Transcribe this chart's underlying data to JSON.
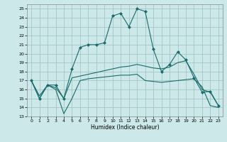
{
  "xlabel": "Humidex (Indice chaleur)",
  "background_color": "#cce8e8",
  "grid_color": "#9bbfbf",
  "line_color": "#1a6b6b",
  "xlim": [
    -0.5,
    23.5
  ],
  "ylim": [
    13,
    25.5
  ],
  "xticks": [
    0,
    1,
    2,
    3,
    4,
    5,
    6,
    7,
    8,
    9,
    10,
    11,
    12,
    13,
    14,
    15,
    16,
    17,
    18,
    19,
    20,
    21,
    22,
    23
  ],
  "yticks": [
    13,
    14,
    15,
    16,
    17,
    18,
    19,
    20,
    21,
    22,
    23,
    24,
    25
  ],
  "series1_x": [
    0,
    1,
    2,
    3,
    4,
    5,
    6,
    7,
    8,
    9,
    10,
    11,
    12,
    13,
    14,
    15,
    16,
    17,
    18,
    19,
    20,
    21,
    22,
    23
  ],
  "series1_y": [
    17.0,
    15.0,
    16.5,
    16.5,
    15.0,
    18.3,
    20.7,
    21.0,
    21.0,
    21.2,
    24.2,
    24.5,
    23.0,
    25.0,
    24.7,
    20.5,
    18.0,
    18.8,
    20.2,
    19.3,
    17.3,
    15.7,
    15.8,
    14.2
  ],
  "series2_x": [
    0,
    1,
    2,
    3,
    4,
    5,
    6,
    7,
    8,
    9,
    10,
    11,
    12,
    13,
    14,
    15,
    16,
    17,
    18,
    19,
    20,
    21,
    22,
    23
  ],
  "series2_y": [
    17.0,
    15.0,
    16.5,
    16.0,
    13.3,
    15.0,
    17.0,
    17.2,
    17.3,
    17.4,
    17.5,
    17.6,
    17.6,
    17.7,
    17.0,
    16.9,
    16.8,
    16.9,
    17.0,
    17.1,
    17.2,
    16.3,
    14.2,
    14.0
  ],
  "series3_x": [
    0,
    1,
    2,
    3,
    4,
    5,
    6,
    7,
    8,
    9,
    10,
    11,
    12,
    13,
    14,
    15,
    16,
    17,
    18,
    19,
    20,
    21,
    22,
    23
  ],
  "series3_y": [
    17.0,
    15.3,
    16.5,
    16.2,
    15.0,
    17.3,
    17.5,
    17.7,
    17.9,
    18.1,
    18.3,
    18.5,
    18.6,
    18.8,
    18.6,
    18.4,
    18.3,
    18.5,
    19.0,
    19.2,
    17.7,
    16.0,
    15.7,
    14.2
  ]
}
